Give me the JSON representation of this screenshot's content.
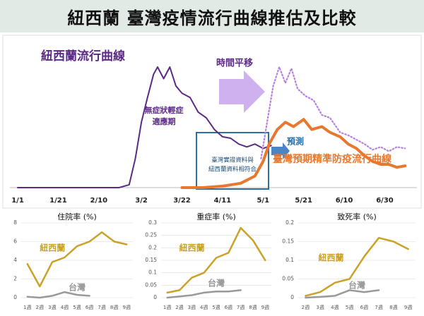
{
  "header": {
    "title": "紐西蘭 臺灣疫情流行曲線推估及比較"
  },
  "chart_data": [
    {
      "type": "line",
      "ylim": [
        0,
        100
      ],
      "xticks": [
        "1/1",
        "1/21",
        "2/10",
        "3/2",
        "3/22",
        "4/11",
        "5/1",
        "5/21",
        "6/10",
        "6/30"
      ],
      "annotations": [
        "時間平移",
        "無症狀輕症",
        "適應期",
        "臺灣實證資料與",
        "紐西蘭資料相符合",
        "預測"
      ],
      "series": [
        {
          "name": "紐西蘭流行曲線",
          "color": "#5b2a86",
          "style": "solid",
          "x": [
            "1/1",
            "2/1",
            "2/20",
            "2/25",
            "2/28",
            "3/2",
            "3/5",
            "3/8",
            "3/10",
            "3/13",
            "3/16",
            "3/19",
            "3/22",
            "3/26",
            "3/30",
            "4/3",
            "4/7",
            "4/11",
            "4/15",
            "4/19",
            "4/23",
            "4/27",
            "5/1",
            "5/5"
          ],
          "values": [
            0,
            0,
            0,
            2,
            20,
            45,
            62,
            78,
            83,
            75,
            83,
            70,
            65,
            62,
            52,
            48,
            40,
            35,
            34,
            30,
            28,
            30,
            27,
            29
          ]
        },
        {
          "color": "#b77fe0",
          "style": "dotted",
          "x": [
            "4/30",
            "5/3",
            "5/6",
            "5/9",
            "5/12",
            "5/15",
            "5/18",
            "5/22",
            "5/26",
            "5/30",
            "6/3",
            "6/8",
            "6/12",
            "6/16",
            "6/20",
            "6/24",
            "6/28",
            "7/2",
            "7/6",
            "7/10"
          ],
          "values": [
            20,
            45,
            70,
            83,
            72,
            82,
            68,
            63,
            60,
            50,
            48,
            38,
            36,
            33,
            30,
            26,
            28,
            25,
            28,
            27
          ]
        },
        {
          "name": "臺灣預期精準防疫流行曲線",
          "color": "#e8782e",
          "style": "thick",
          "x": [
            "3/22",
            "4/1",
            "4/11",
            "4/20",
            "4/27",
            "5/1",
            "5/4",
            "5/8",
            "5/12",
            "5/16",
            "5/21",
            "5/25",
            "5/30",
            "6/3",
            "6/8",
            "6/12",
            "6/16",
            "6/20",
            "6/24",
            "6/28",
            "7/2",
            "7/6",
            "7/10"
          ],
          "values": [
            0,
            0,
            1,
            3,
            8,
            18,
            30,
            40,
            45,
            42,
            47,
            40,
            42,
            38,
            35,
            30,
            27,
            22,
            18,
            16,
            16,
            14,
            15
          ]
        }
      ]
    },
    {
      "type": "line",
      "title": "住院率 (%)",
      "ylim": [
        0,
        8
      ],
      "yticks": [
        0,
        2,
        4,
        6,
        8
      ],
      "categories": [
        "1週",
        "2週",
        "3週",
        "4週",
        "5週",
        "6週",
        "7週",
        "8週",
        "9週"
      ],
      "series": [
        {
          "name": "紐西蘭",
          "color": "#c9a227",
          "values": [
            3.6,
            1.2,
            3.8,
            4.3,
            5.5,
            6.0,
            7.0,
            6.0,
            5.7
          ]
        },
        {
          "name": "台灣",
          "color": "#999999",
          "values": [
            0.1,
            0,
            0.2,
            0.6,
            0.3,
            0.2,
            null,
            null,
            null
          ]
        }
      ]
    },
    {
      "type": "line",
      "title": "重症率 (%)",
      "ylim": [
        0,
        0.3
      ],
      "yticks": [
        0,
        0.05,
        0.1,
        0.15,
        0.2,
        0.25,
        0.3
      ],
      "categories": [
        "1週",
        "2週",
        "3週",
        "4週",
        "5週",
        "6週",
        "7週",
        "8週",
        "9週"
      ],
      "series": [
        {
          "name": "紐西蘭",
          "color": "#c9a227",
          "values": [
            0.02,
            0.03,
            0.08,
            0.1,
            0.16,
            0.18,
            0.28,
            0.23,
            0.15
          ]
        },
        {
          "name": "台灣",
          "color": "#999999",
          "values": [
            0,
            0.005,
            0.01,
            0.02,
            0.025,
            0.025,
            0.03,
            null,
            null
          ]
        }
      ]
    },
    {
      "type": "line",
      "title": "致死率 (%)",
      "ylim": [
        0,
        0.2
      ],
      "yticks": [
        0,
        0.05,
        0.1,
        0.15,
        0.2
      ],
      "categories": [
        "2週",
        "3週",
        "4週",
        "5週",
        "6週",
        "7週",
        "8週",
        "9週"
      ],
      "series": [
        {
          "name": "紐西蘭",
          "color": "#c9a227",
          "values": [
            0.005,
            0.015,
            0.04,
            0.05,
            0.11,
            0.16,
            0.15,
            0.13
          ]
        },
        {
          "name": "台灣",
          "color": "#999999",
          "values": [
            0,
            0.002,
            0.005,
            0.02,
            0.015,
            0.02,
            null,
            null
          ]
        }
      ]
    }
  ]
}
